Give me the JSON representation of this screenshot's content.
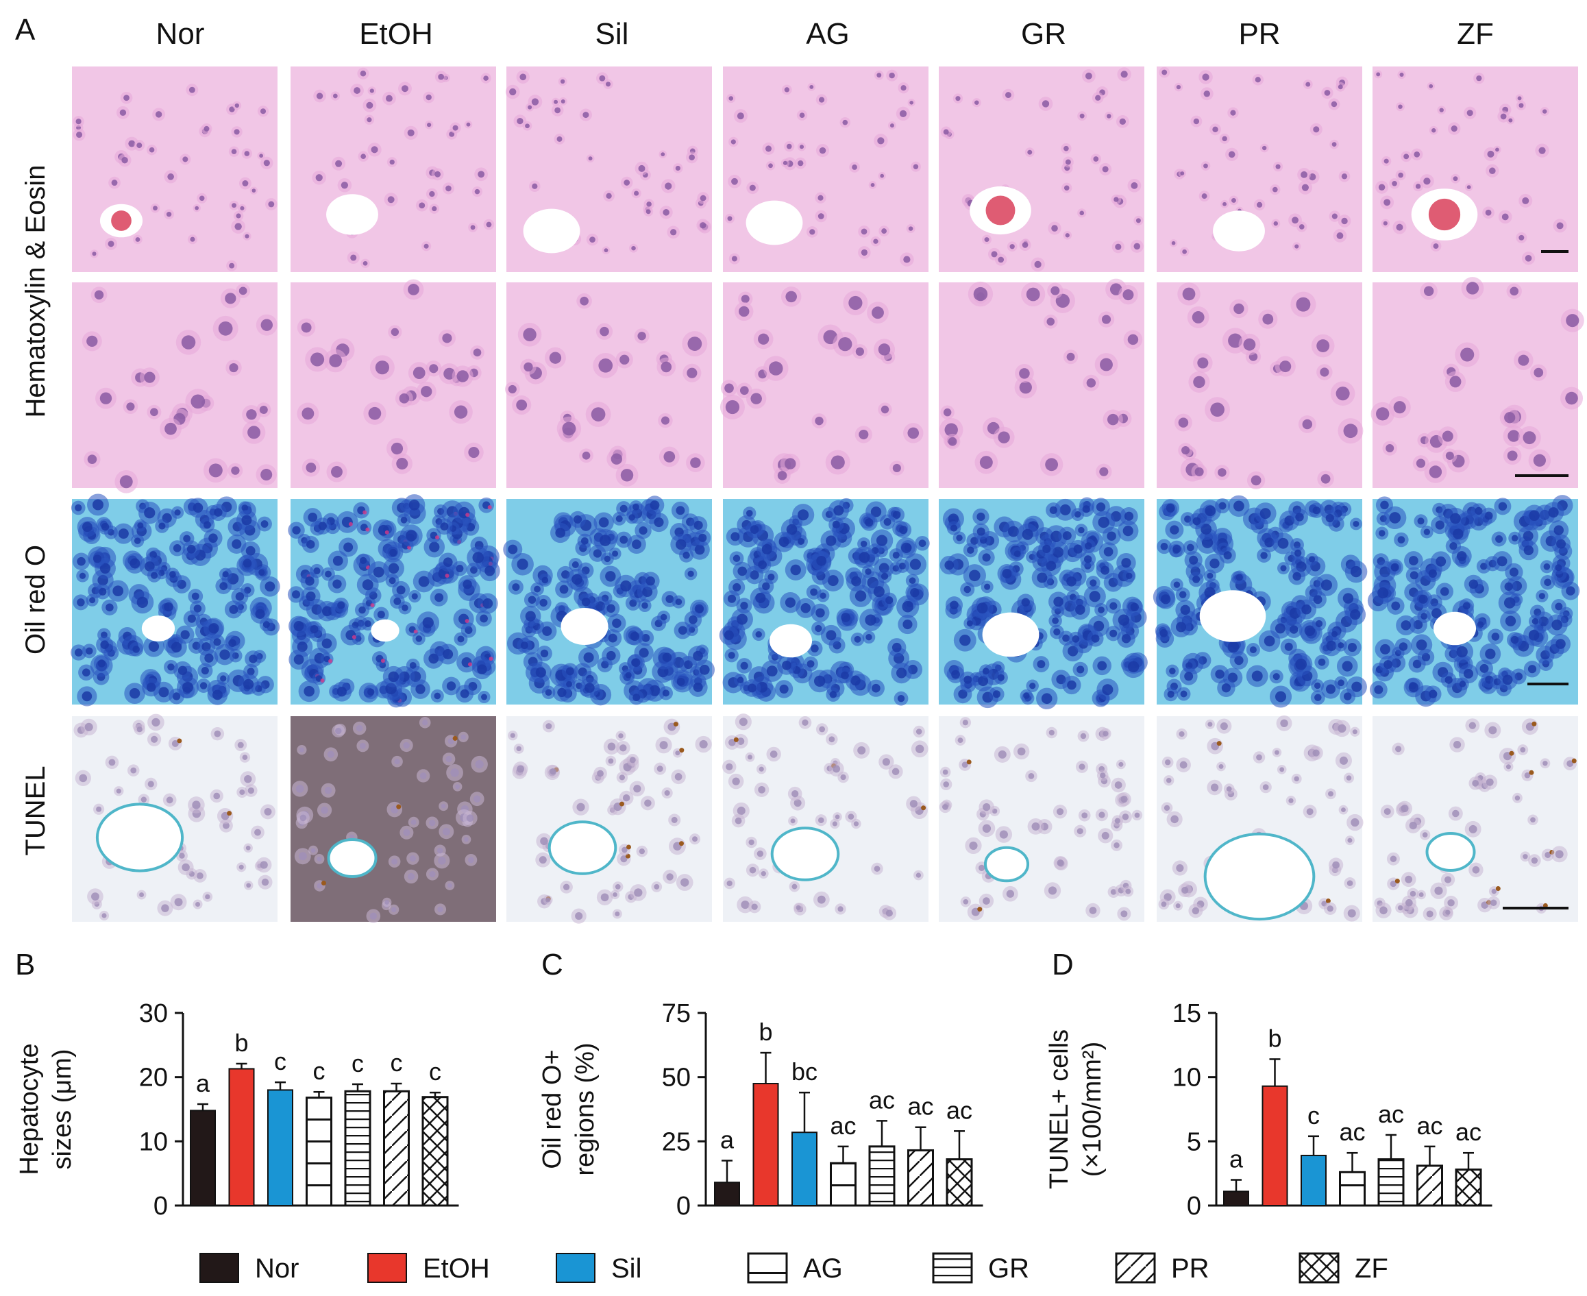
{
  "panel_labels": {
    "a": "A",
    "b": "B",
    "c": "C",
    "d": "D"
  },
  "columns": [
    "Nor",
    "EtOH",
    "Sil",
    "AG",
    "GR",
    "PR",
    "ZF"
  ],
  "rows": [
    "Hematoxylin & Eosin",
    "Oil red O",
    "TUNEL"
  ],
  "colors": {
    "Nor": "#221818",
    "EtOH": "#e8372c",
    "Sil": "#1a95d4",
    "he_bg": "#f1c6e6",
    "he_cell": "#e6a8d8",
    "he_nucleus": "#8a5aa3",
    "oil_bg": "#7fcde8",
    "oil_cell": "#2a53c0",
    "tunel_bg": "#eef1f6",
    "tunel_cell": "#c8b7d4"
  },
  "legend": [
    {
      "name": "Nor",
      "pattern": "solid-dark"
    },
    {
      "name": "EtOH",
      "pattern": "solid-red"
    },
    {
      "name": "Sil",
      "pattern": "solid-blue"
    },
    {
      "name": "AG",
      "pattern": "horizontal-wide"
    },
    {
      "name": "GR",
      "pattern": "horizontal-dense"
    },
    {
      "name": "PR",
      "pattern": "diagonal"
    },
    {
      "name": "ZF",
      "pattern": "crosshatch"
    }
  ],
  "chart_data": [
    {
      "type": "bar",
      "panel": "B",
      "ylabel_line1": "Hepatocyte",
      "ylabel_line2": "sizes (μm)",
      "categories": [
        "Nor",
        "EtOH",
        "Sil",
        "AG",
        "GR",
        "PR",
        "ZF"
      ],
      "values": [
        14.8,
        21.3,
        18.0,
        16.8,
        17.8,
        17.8,
        16.9
      ],
      "errors": [
        1.0,
        0.8,
        1.2,
        0.9,
        1.1,
        1.2,
        0.7
      ],
      "significance": [
        "a",
        "b",
        "c",
        "c",
        "c",
        "c",
        "c"
      ],
      "ylim": [
        0,
        30
      ],
      "yticks": [
        0,
        10,
        20,
        30
      ]
    },
    {
      "type": "bar",
      "panel": "C",
      "ylabel_line1": "Oil red O+",
      "ylabel_line2": "regions (%)",
      "categories": [
        "Nor",
        "EtOH",
        "Sil",
        "AG",
        "GR",
        "PR",
        "ZF"
      ],
      "values": [
        9,
        47.5,
        28.5,
        16.5,
        23,
        21.5,
        18
      ],
      "errors": [
        8.5,
        12,
        15.5,
        6.5,
        10,
        9,
        11
      ],
      "significance": [
        "a",
        "b",
        "bc",
        "ac",
        "ac",
        "ac",
        "ac"
      ],
      "ylim": [
        0,
        75
      ],
      "yticks": [
        0,
        25,
        50,
        75
      ]
    },
    {
      "type": "bar",
      "panel": "D",
      "ylabel_line1": "TUNEL+ cells",
      "ylabel_line2": "(×100/mm²)",
      "categories": [
        "Nor",
        "EtOH",
        "Sil",
        "AG",
        "GR",
        "PR",
        "ZF"
      ],
      "values": [
        1.1,
        9.3,
        3.9,
        2.6,
        3.6,
        3.1,
        2.8
      ],
      "errors": [
        0.9,
        2.1,
        1.5,
        1.5,
        1.9,
        1.5,
        1.3
      ],
      "significance": [
        "a",
        "b",
        "c",
        "ac",
        "ac",
        "ac",
        "ac"
      ],
      "ylim": [
        0,
        15
      ],
      "yticks": [
        0,
        5,
        10,
        15
      ]
    }
  ]
}
